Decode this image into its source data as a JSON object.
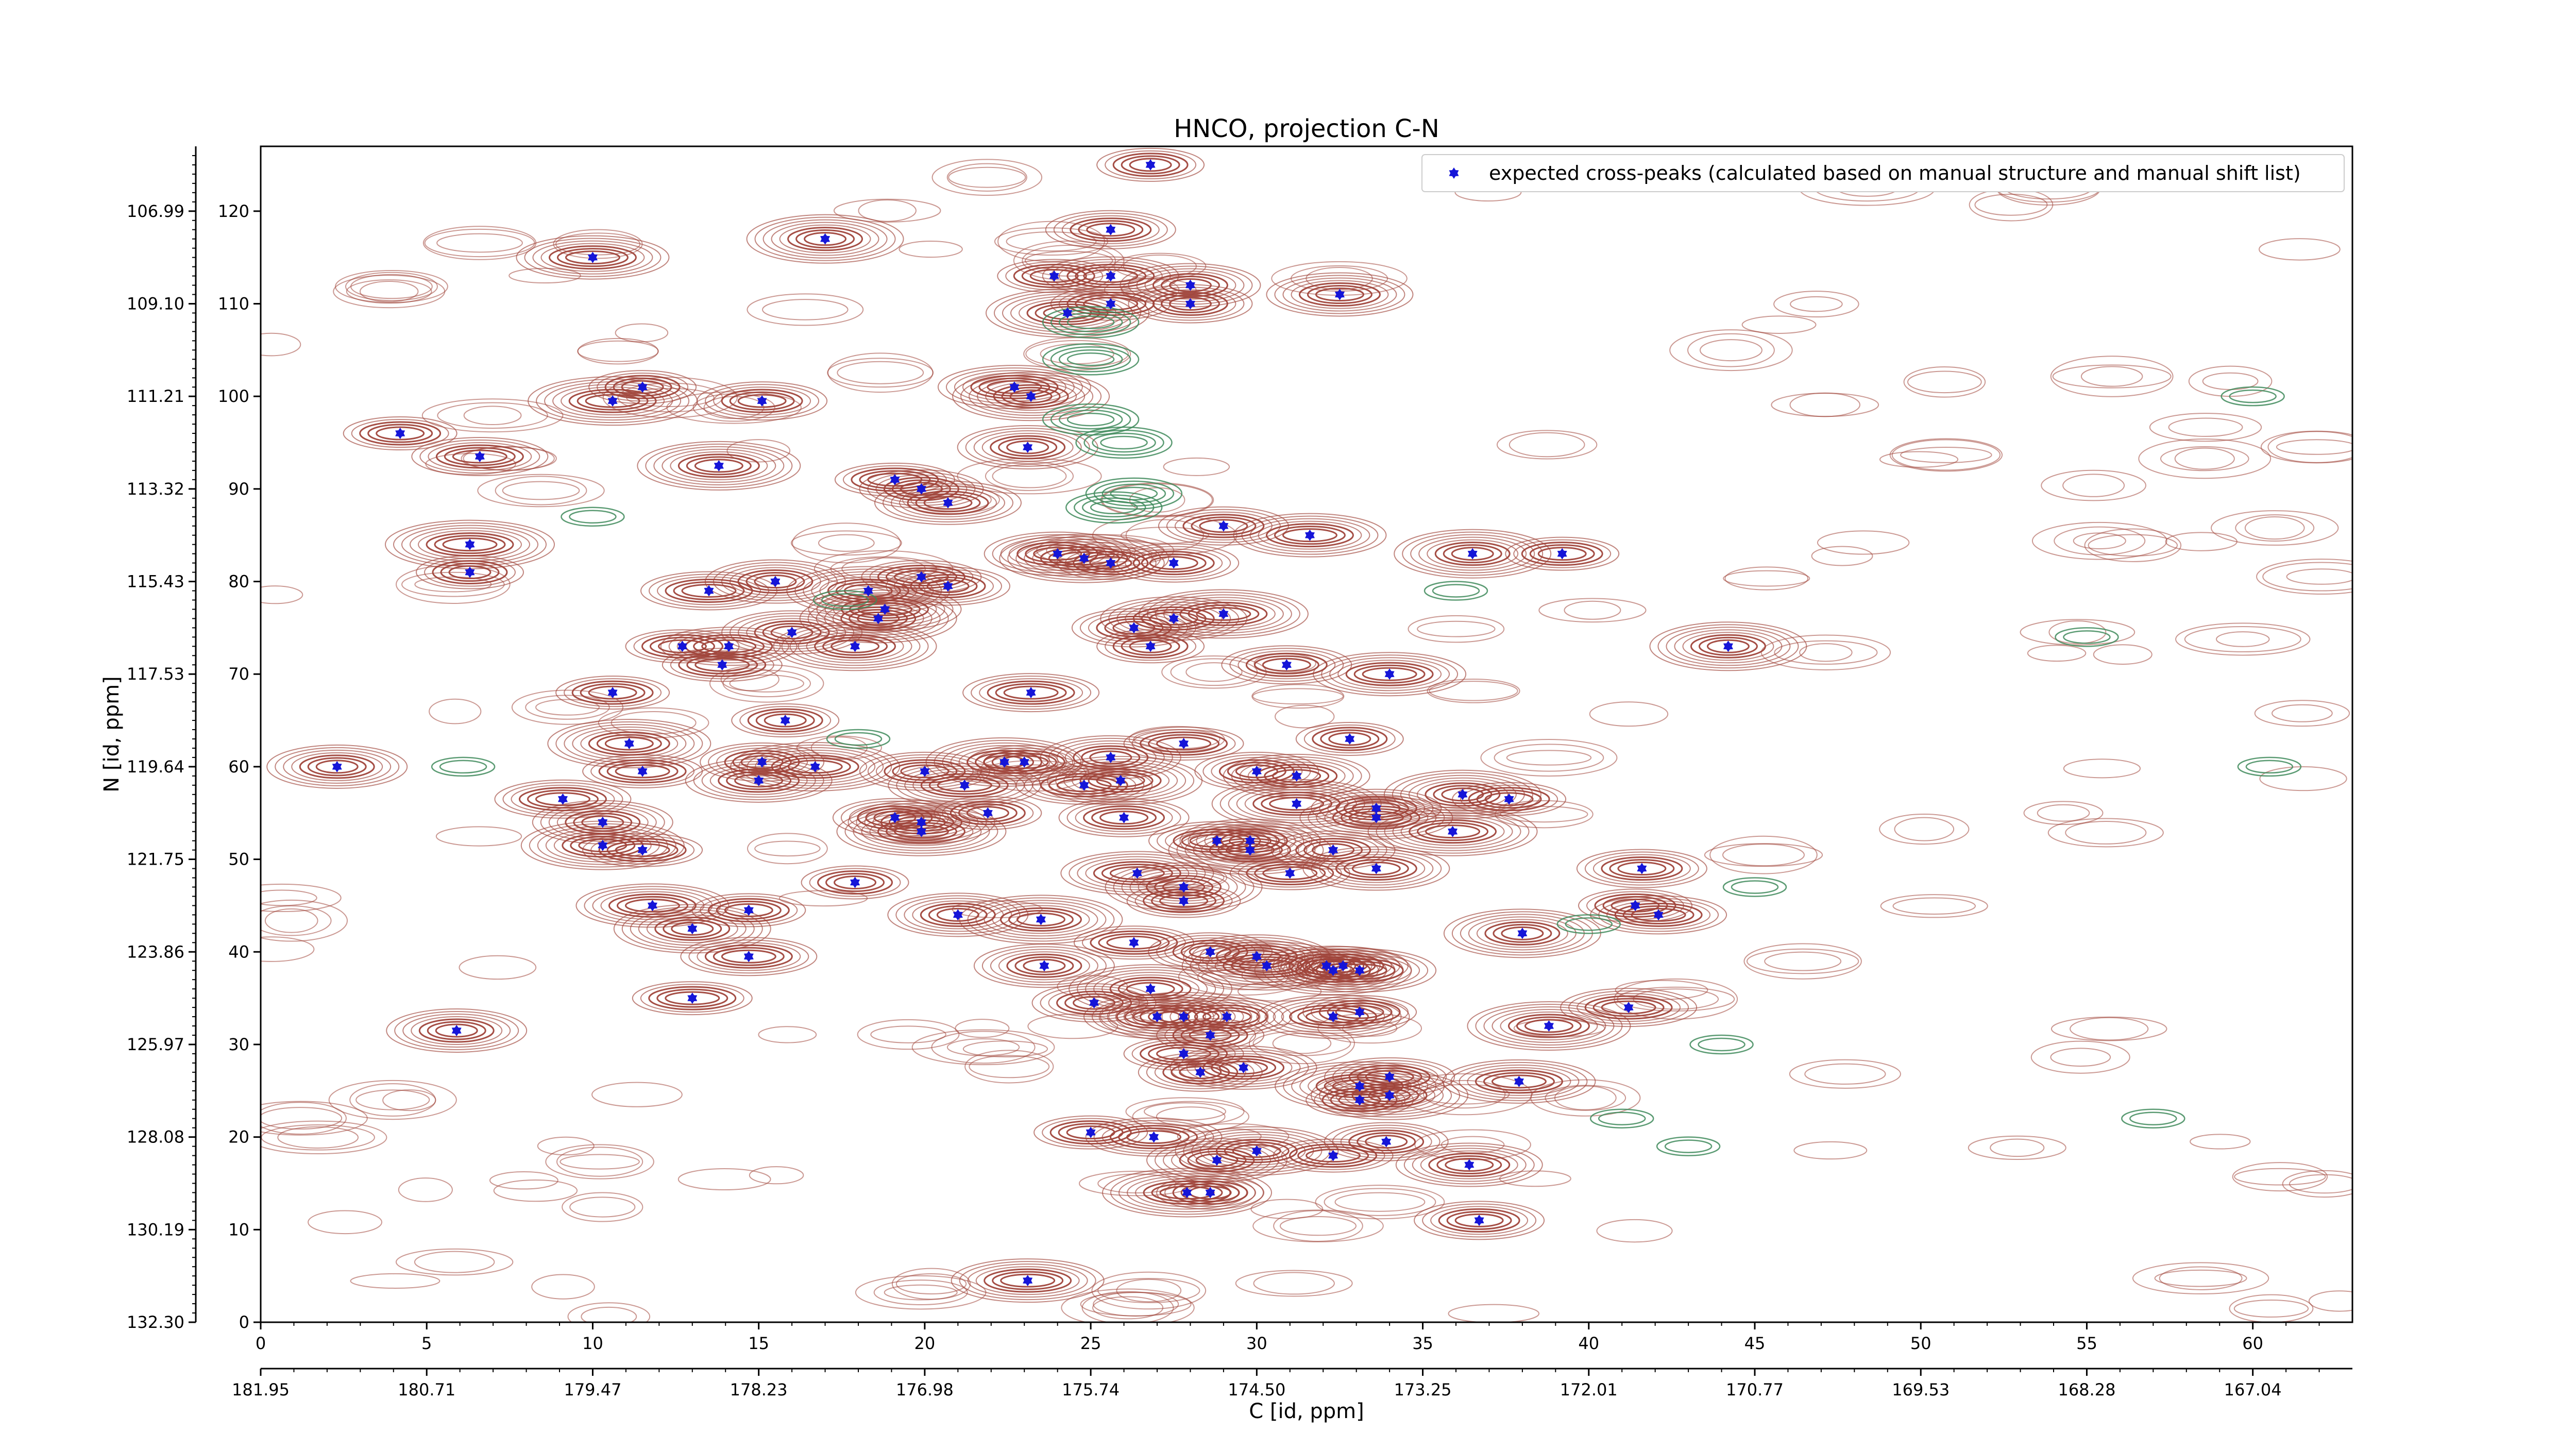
{
  "chart_data": {
    "type": "scatter",
    "title": "HNCO, projection C-N",
    "xlabel": "C [id, ppm]",
    "ylabel": "N [id, ppm]",
    "xlim": [
      0,
      63
    ],
    "ylim": [
      0,
      127
    ],
    "x_ticks": [
      0,
      5,
      10,
      15,
      20,
      25,
      30,
      35,
      40,
      45,
      50,
      55,
      60
    ],
    "y_ticks": [
      0,
      10,
      20,
      30,
      40,
      50,
      60,
      70,
      80,
      90,
      100,
      110,
      120
    ],
    "x_ppm_tick_labels": [
      "181.95",
      "180.71",
      "179.47",
      "178.23",
      "176.98",
      "175.74",
      "174.50",
      "173.25",
      "172.01",
      "170.77",
      "169.53",
      "168.28",
      "167.04"
    ],
    "y_ppm_tick_labels": [
      "132.30",
      "130.19",
      "128.08",
      "125.97",
      "123.86",
      "121.75",
      "119.64",
      "117.53",
      "115.43",
      "113.32",
      "111.21",
      "109.10",
      "106.99"
    ],
    "legend": {
      "position": "top-right",
      "label": "expected cross-peaks (calculated based on manual structure and manual shift list)"
    },
    "colors": {
      "positive_contour": "#a0453b",
      "negative_contour": "#3e8a5a",
      "marker": "#1515d8"
    },
    "grid": false,
    "series": [
      {
        "name": "expected cross-peaks (calculated based on manual structure and manual shift list)",
        "points": [
          [
            26.8,
            125
          ],
          [
            25.6,
            118
          ],
          [
            10,
            115
          ],
          [
            17,
            117
          ],
          [
            23.9,
            113
          ],
          [
            25.6,
            113
          ],
          [
            28,
            112
          ],
          [
            24.3,
            109
          ],
          [
            25.6,
            110
          ],
          [
            28,
            110
          ],
          [
            32.5,
            111
          ],
          [
            10.6,
            99.5
          ],
          [
            11.5,
            101
          ],
          [
            15.1,
            99.5
          ],
          [
            22.7,
            101
          ],
          [
            23.2,
            100
          ],
          [
            4.2,
            96
          ],
          [
            6.6,
            93.5
          ],
          [
            23.1,
            94.5
          ],
          [
            13.8,
            92.5
          ],
          [
            19.1,
            91
          ],
          [
            19.9,
            90
          ],
          [
            20.7,
            88.5
          ],
          [
            6.3,
            84
          ],
          [
            6.3,
            81
          ],
          [
            29,
            86
          ],
          [
            31.6,
            85
          ],
          [
            36.5,
            83
          ],
          [
            39.2,
            83
          ],
          [
            13.5,
            79
          ],
          [
            15.5,
            80
          ],
          [
            18.3,
            79
          ],
          [
            19.9,
            80.5
          ],
          [
            20.7,
            79.5
          ],
          [
            24,
            83
          ],
          [
            24.8,
            82.5
          ],
          [
            25.6,
            82
          ],
          [
            27.5,
            82
          ],
          [
            18.8,
            77
          ],
          [
            18.6,
            76
          ],
          [
            12.7,
            73
          ],
          [
            14.1,
            73
          ],
          [
            16,
            74.5
          ],
          [
            17.9,
            73
          ],
          [
            13.9,
            71
          ],
          [
            26.3,
            75
          ],
          [
            27.5,
            76
          ],
          [
            29,
            76.5
          ],
          [
            26.8,
            73
          ],
          [
            30.9,
            71
          ],
          [
            34,
            70
          ],
          [
            44.2,
            73
          ],
          [
            10.6,
            68
          ],
          [
            23.2,
            68
          ],
          [
            2.3,
            60
          ],
          [
            11.1,
            62.5
          ],
          [
            11.5,
            59.5
          ],
          [
            15.1,
            60.5
          ],
          [
            15,
            58.5
          ],
          [
            16.7,
            60
          ],
          [
            15.8,
            65
          ],
          [
            20,
            59.5
          ],
          [
            21.2,
            58
          ],
          [
            22.4,
            60.5
          ],
          [
            23,
            60.5
          ],
          [
            24.8,
            58
          ],
          [
            25.6,
            61
          ],
          [
            25.9,
            58.5
          ],
          [
            27.8,
            62.5
          ],
          [
            30,
            59.5
          ],
          [
            31.2,
            59
          ],
          [
            31.2,
            56
          ],
          [
            32.8,
            63
          ],
          [
            33.6,
            55.5
          ],
          [
            33.6,
            54.5
          ],
          [
            36.2,
            57
          ],
          [
            37.6,
            56.5
          ],
          [
            9.1,
            56.5
          ],
          [
            10.3,
            54
          ],
          [
            10.3,
            51.5
          ],
          [
            11.5,
            51
          ],
          [
            19.1,
            54.5
          ],
          [
            19.9,
            54
          ],
          [
            19.9,
            53
          ],
          [
            21.9,
            55
          ],
          [
            26,
            54.5
          ],
          [
            26.4,
            48.5
          ],
          [
            27.8,
            47
          ],
          [
            27.8,
            45.5
          ],
          [
            28.8,
            52
          ],
          [
            29.8,
            52
          ],
          [
            29.8,
            51
          ],
          [
            31,
            48.5
          ],
          [
            32.3,
            51
          ],
          [
            33.6,
            49
          ],
          [
            35.9,
            53
          ],
          [
            17.9,
            47.5
          ],
          [
            41.6,
            49
          ],
          [
            11.8,
            45
          ],
          [
            13,
            42.5
          ],
          [
            14.7,
            44.5
          ],
          [
            14.7,
            39.5
          ],
          [
            21,
            44
          ],
          [
            23.5,
            43.5
          ],
          [
            26.3,
            41
          ],
          [
            28.6,
            40
          ],
          [
            30,
            39.5
          ],
          [
            30.3,
            38.5
          ],
          [
            32.1,
            38.5
          ],
          [
            32.6,
            38.5
          ],
          [
            33.1,
            38
          ],
          [
            38,
            42
          ],
          [
            41.4,
            45
          ],
          [
            42.1,
            44
          ],
          [
            23.6,
            38.5
          ],
          [
            26.8,
            36
          ],
          [
            13,
            35
          ],
          [
            25.1,
            34.5
          ],
          [
            27,
            33
          ],
          [
            27.8,
            33
          ],
          [
            28.6,
            31
          ],
          [
            29.1,
            33
          ],
          [
            32.3,
            33
          ],
          [
            32.3,
            38
          ],
          [
            33.1,
            33.5
          ],
          [
            41.2,
            34
          ],
          [
            5.9,
            31.5
          ],
          [
            38.8,
            32
          ],
          [
            27.8,
            29
          ],
          [
            28.3,
            27
          ],
          [
            29.6,
            27.5
          ],
          [
            33.1,
            25.5
          ],
          [
            33.1,
            24
          ],
          [
            34,
            26.5
          ],
          [
            37.9,
            26
          ],
          [
            34,
            24.5
          ],
          [
            25,
            20.5
          ],
          [
            26.9,
            20
          ],
          [
            28.8,
            17.5
          ],
          [
            30,
            18.5
          ],
          [
            32.3,
            18
          ],
          [
            33.9,
            19.5
          ],
          [
            36.4,
            17
          ],
          [
            27.9,
            14
          ],
          [
            28.6,
            14
          ],
          [
            36.7,
            11
          ],
          [
            23.1,
            4.5
          ]
        ]
      }
    ]
  }
}
